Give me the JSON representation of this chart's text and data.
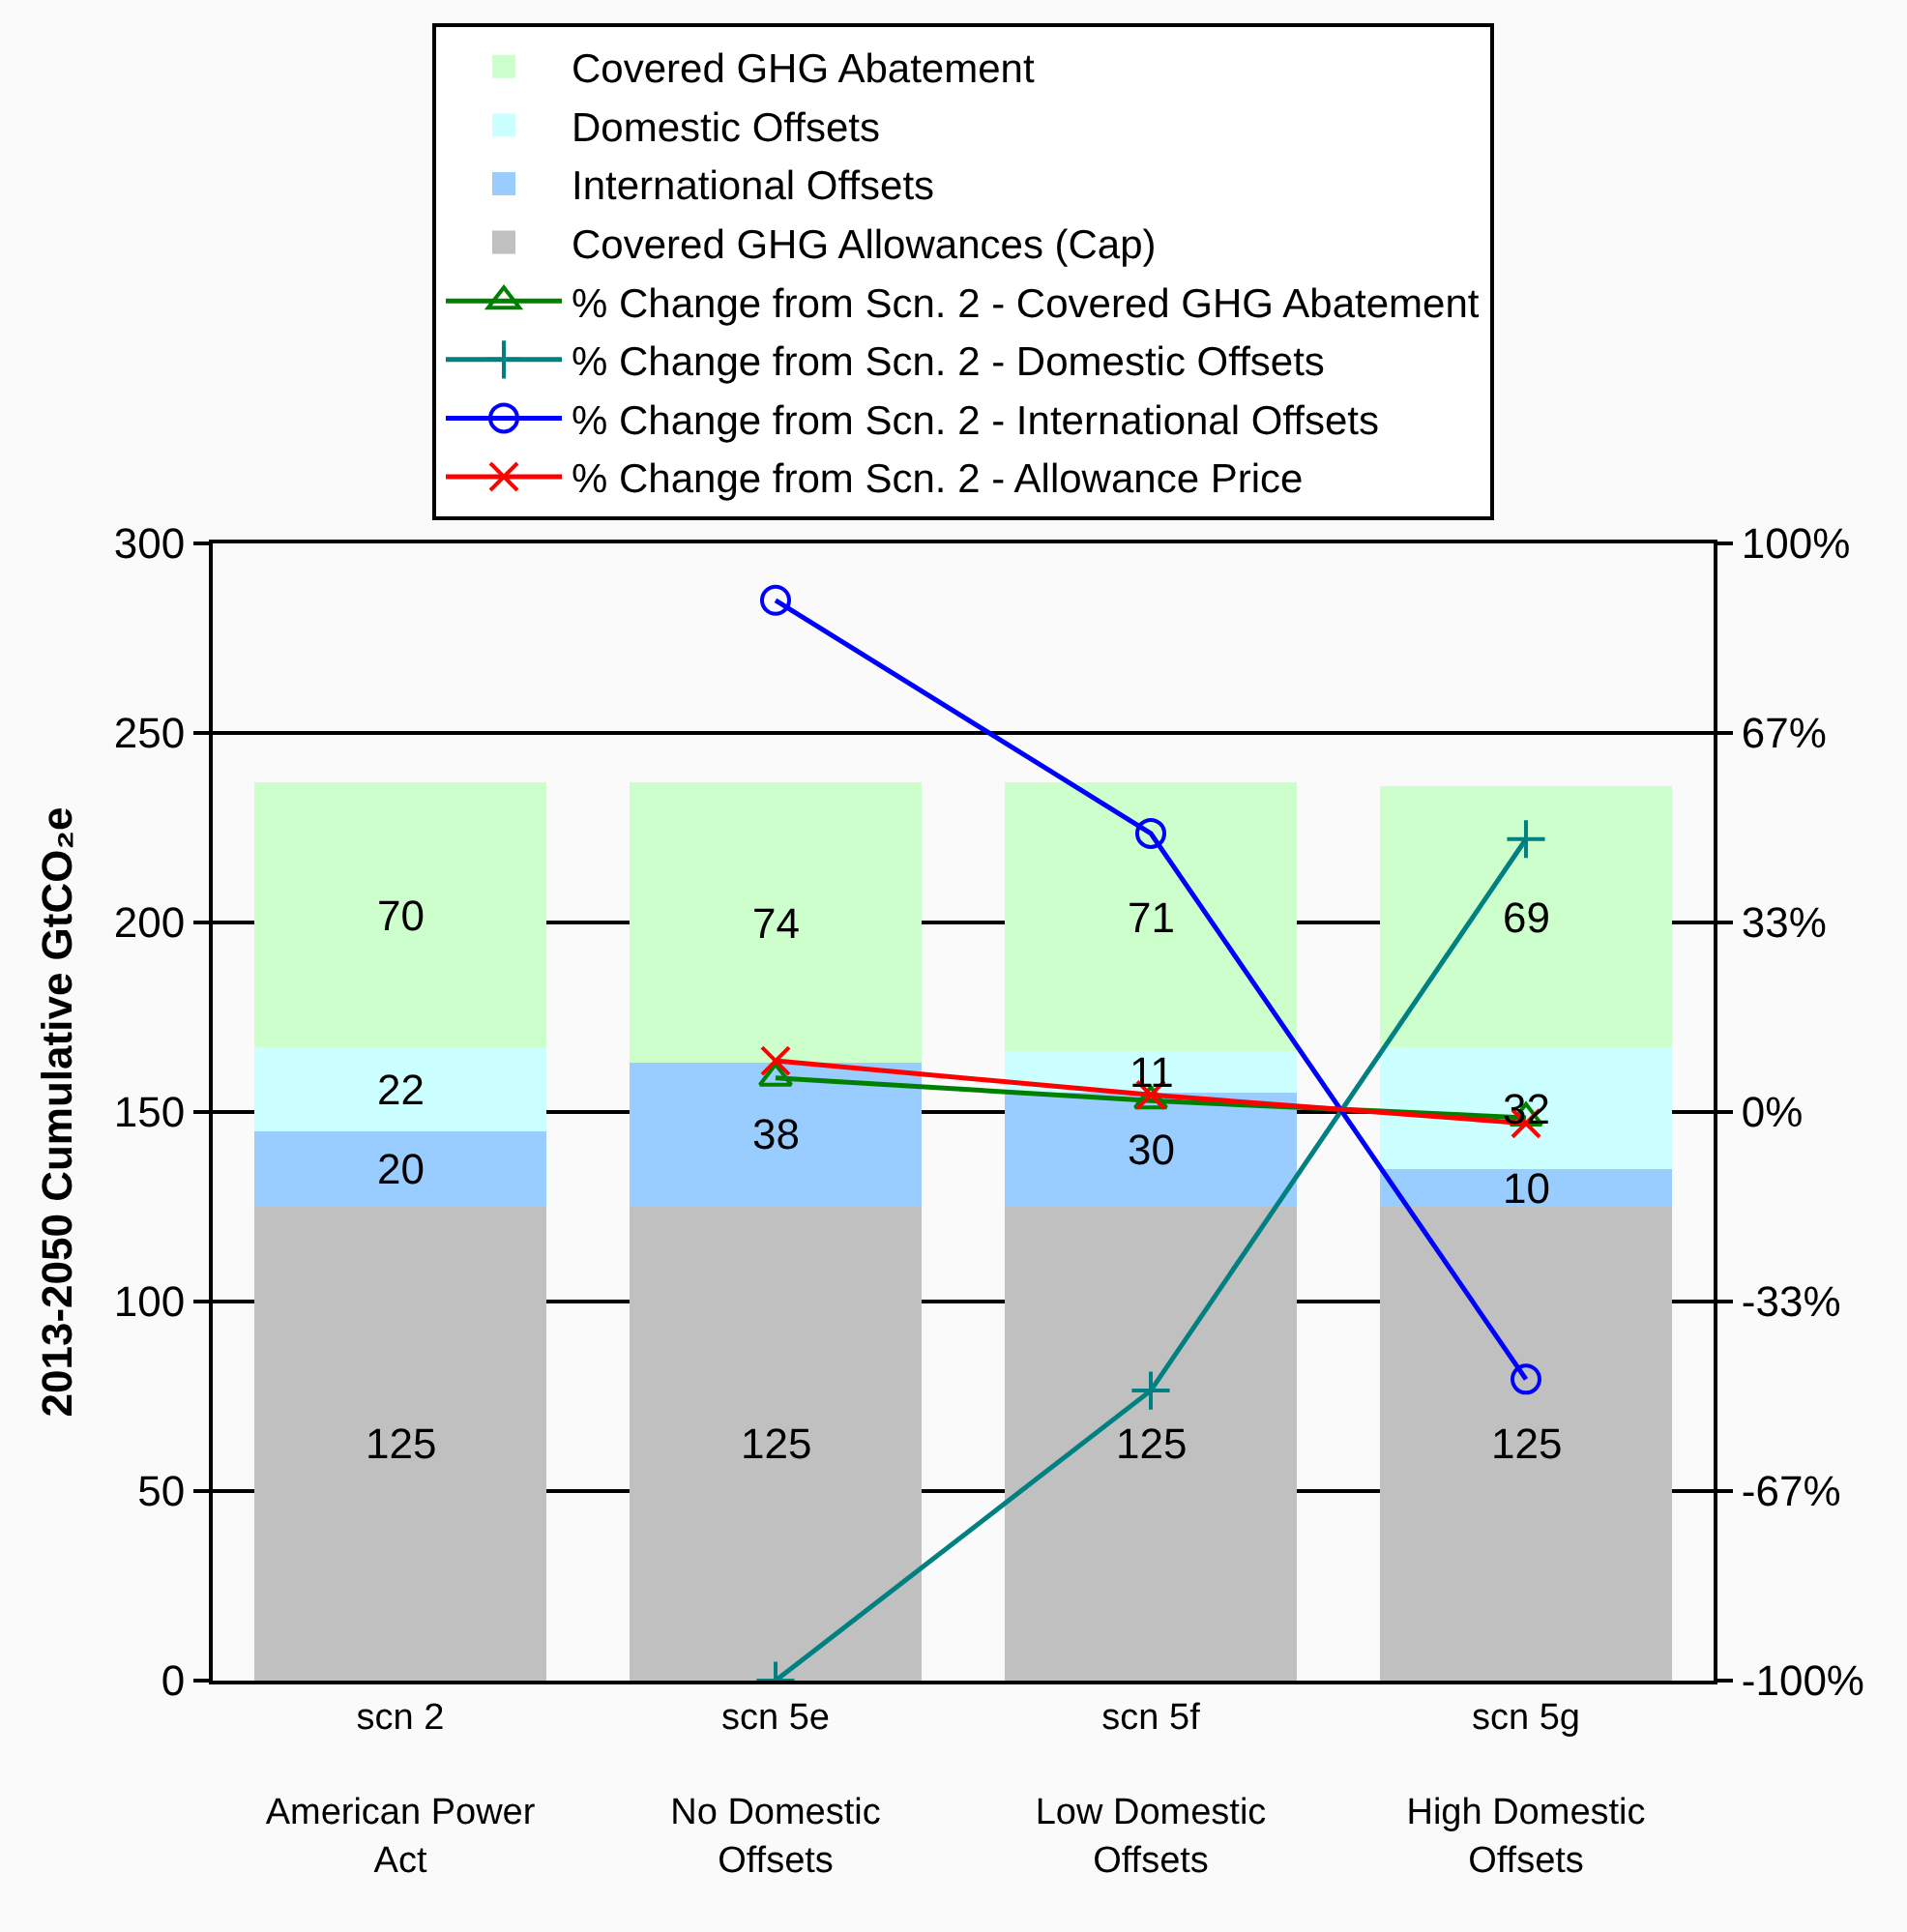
{
  "chart_data": {
    "type": "bar",
    "stacked": true,
    "categories": [
      "scn 2\n\nAmerican Power\nAct",
      "scn 5e\n\nNo Domestic\nOffsets",
      "scn 5f\n\nLow Domestic\nOffsets",
      "scn 5g\n\nHigh Domestic\nOffsets"
    ],
    "ylabel": "2013-2050 Cumulative GtCO₂e",
    "ylim": [
      0,
      300
    ],
    "yticks": [
      0,
      50,
      100,
      150,
      200,
      250,
      300
    ],
    "y2lim": [
      -100,
      100
    ],
    "y2ticks": [
      {
        "value": -100,
        "label": "-100%"
      },
      {
        "value": -66.67,
        "label": "-67%"
      },
      {
        "value": -33.33,
        "label": "-33%"
      },
      {
        "value": 0,
        "label": "0%"
      },
      {
        "value": 33.33,
        "label": "33%"
      },
      {
        "value": 66.67,
        "label": "67%"
      },
      {
        "value": 100,
        "label": "100%"
      }
    ],
    "grid": "y",
    "legend": "top",
    "series": [
      {
        "name": "Covered GHG Allowances (Cap)",
        "color": "#c0c0c0",
        "values": [
          125,
          125,
          125,
          125
        ],
        "value_labels": [
          "125",
          "125",
          "125",
          "125"
        ]
      },
      {
        "name": "International Offsets",
        "color": "#99ccff",
        "values": [
          20,
          38,
          30,
          10
        ],
        "value_labels": [
          "20",
          "38",
          "30",
          "10"
        ]
      },
      {
        "name": "Domestic Offsets",
        "color": "#ccffff",
        "values": [
          22,
          null,
          11,
          32
        ],
        "value_labels": [
          "22",
          null,
          "11",
          "32"
        ]
      },
      {
        "name": "Covered GHG Abatement",
        "color": "#ccffcc",
        "values": [
          70,
          74,
          71,
          69
        ],
        "value_labels": [
          "70",
          "74",
          "71",
          "69"
        ]
      },
      {
        "name": "% Change from Scn. 2 - Covered GHG Abatement",
        "type": "line",
        "axis": "y2",
        "color": "#008000",
        "marker": "triangle",
        "values": [
          null,
          6,
          2,
          -1
        ]
      },
      {
        "name": "% Change from Scn. 2 - Domestic Offsets",
        "type": "line",
        "axis": "y2",
        "color": "#008080",
        "marker": "cross",
        "values": [
          null,
          -100,
          -49,
          48
        ]
      },
      {
        "name": "% Change from Scn. 2 - International Offsets",
        "type": "line",
        "axis": "y2",
        "color": "#0000ff",
        "marker": "circle",
        "values": [
          null,
          90,
          49,
          -47
        ]
      },
      {
        "name": "% Change from Scn. 2 - Allowance Price",
        "type": "line",
        "axis": "y2",
        "color": "#ff0000",
        "marker": "x",
        "values": [
          null,
          9,
          3,
          -2
        ]
      }
    ]
  }
}
